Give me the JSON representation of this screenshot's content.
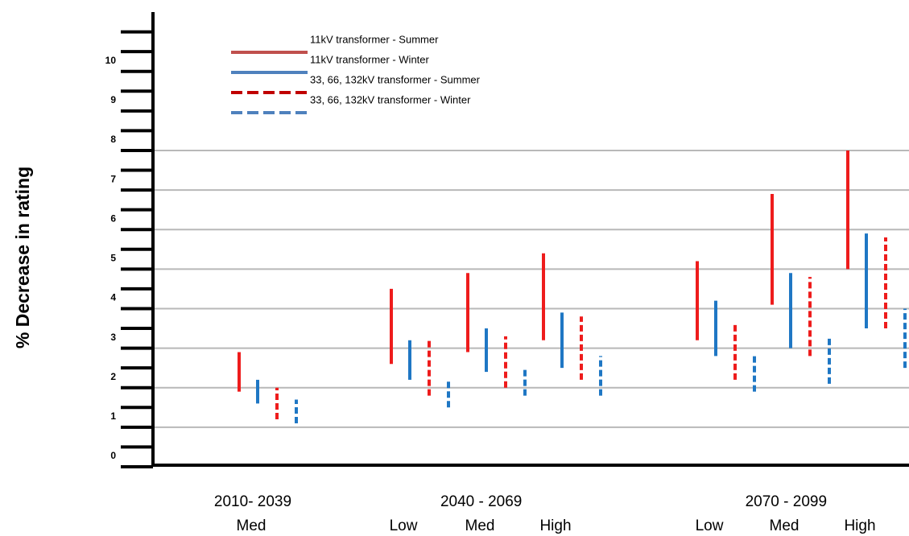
{
  "chart_data": {
    "type": "range_bar",
    "y_label": "% Decrease in rating",
    "periods": [
      "2010- 2039",
      "2040 - 2069",
      "2070 - 2099"
    ],
    "categories": [
      "Med",
      "Low",
      "Med",
      "High",
      "Low",
      "Med",
      "High"
    ],
    "category_period": [
      0,
      1,
      1,
      1,
      2,
      2,
      2
    ],
    "ylim": [
      0,
      11.5
    ],
    "yticks": [
      0,
      1,
      2,
      3,
      4,
      5,
      6,
      7,
      8,
      9,
      10
    ],
    "minor_yticks": [
      0.5,
      1.5,
      2.5,
      3.5,
      4.5,
      5.5,
      6.5,
      7.5,
      8.5,
      9.5,
      10.5,
      11
    ],
    "grid": true,
    "grid_range": [
      1,
      8
    ],
    "legend": "upper left",
    "series": [
      {
        "name": "11kV transformer - Summer",
        "color": "#ee1c1c",
        "legend_color": "#c0504d",
        "dashed": false,
        "low": [
          1.9,
          2.6,
          2.9,
          3.2,
          3.2,
          4.1,
          5.0
        ],
        "high": [
          2.9,
          4.5,
          4.9,
          5.4,
          5.2,
          6.9,
          8.0
        ]
      },
      {
        "name": "11kV transformer - Winter",
        "color": "#1f77c4",
        "legend_color": "#4f81bd",
        "dashed": false,
        "low": [
          1.6,
          2.2,
          2.4,
          2.5,
          2.8,
          3.0,
          3.5
        ],
        "high": [
          2.2,
          3.2,
          3.5,
          3.9,
          4.2,
          4.9,
          5.9
        ]
      },
      {
        "name": "33, 66, 132kV transformer - Summer",
        "color": "#ee1c1c",
        "legend_color": "#c00000",
        "dashed": true,
        "low": [
          1.2,
          1.8,
          2.0,
          2.2,
          2.2,
          2.8,
          3.5
        ],
        "high": [
          2.0,
          3.2,
          3.3,
          3.8,
          3.6,
          4.8,
          5.8
        ]
      },
      {
        "name": "33, 66, 132kV transformer - Winter",
        "color": "#1f77c4",
        "legend_color": "#4f81bd",
        "dashed": true,
        "low": [
          1.1,
          1.5,
          1.8,
          1.8,
          1.9,
          2.1,
          2.5
        ],
        "high": [
          1.7,
          2.2,
          2.5,
          2.8,
          2.8,
          3.3,
          4.0
        ]
      }
    ]
  }
}
